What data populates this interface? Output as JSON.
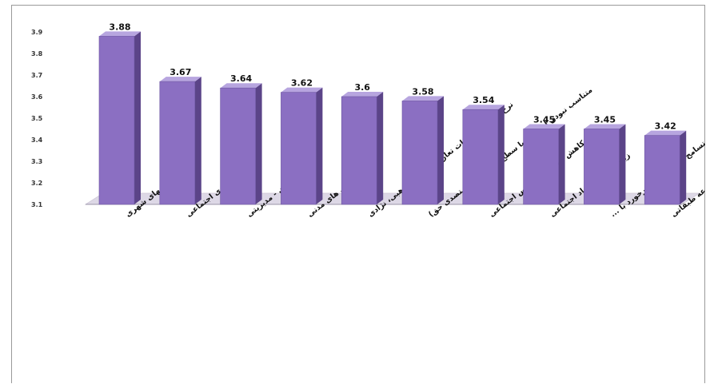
{
  "chart_data": {
    "type": "bar",
    "categories": [
      "بروز آشوبهای شهری",
      "نابرابری اجتماعی",
      "فساد اداری - مدیریتی",
      "کمبود ازادی های مدنی",
      "نرخ بالای اقزایشات تعارض قومی، مذهبی، نژادی",
      "متناسب نبودن امکانات با سطح توقع مردم(متصدی حق)",
      "کاهش انسجام و تماس اجتماعی",
      "زیادتر شدن فساد اجتماعی",
      "کردمحوری و عدم وجود فرهنگ تسامح و تساهل در برخورد با ...",
      "منازعه طبقاتی"
    ],
    "values": [
      3.88,
      3.67,
      3.64,
      3.62,
      3.6,
      3.58,
      3.54,
      3.45,
      3.45,
      3.42
    ],
    "data_labels": [
      "3.88",
      "3.67",
      "3.64",
      "3.62",
      "3.6",
      "3.58",
      "3.54",
      "3.45",
      "3.45",
      "3.42"
    ],
    "y_ticks": [
      "3.1",
      "3.2",
      "3.3",
      "3.4",
      "3.5",
      "3.6",
      "3.7",
      "3.8",
      "3.9"
    ],
    "ylim": [
      3.1,
      3.9
    ],
    "title": "",
    "xlabel": "",
    "ylabel": "",
    "grid": false,
    "style": "3d-column",
    "colors": {
      "bar_front": "#8b6fc2",
      "bar_side": "#5b4488",
      "bar_top": "#b7a5df",
      "floor": "#ddd8e6"
    }
  }
}
